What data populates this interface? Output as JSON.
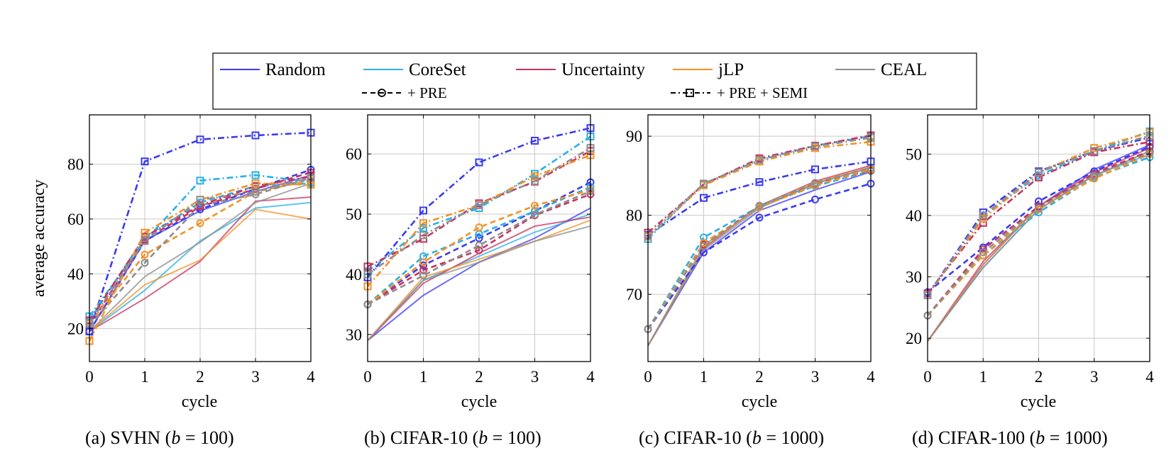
{
  "colors": {
    "Random": "#3b3bf0",
    "CoreSet": "#2ab0e8",
    "Uncertainty": "#c8325f",
    "jLP": "#f39225",
    "CEAL": "#8e8e8e",
    "grid": "#c8c8c8",
    "axis": "#000000"
  },
  "legend": {
    "methods": [
      "Random",
      "CoreSet",
      "Uncertainty",
      "jLP",
      "CEAL"
    ],
    "variants": [
      "+ PRE",
      "+ PRE + SEMI"
    ]
  },
  "chart_data": [
    {
      "type": "line",
      "title": "(a) SVHN (b = 100)",
      "caption_prefix": "(a) SVHN (",
      "caption_var": "b",
      "caption_suffix": " = 100)",
      "xlabel": "cycle",
      "ylabel": "average accuracy",
      "x": [
        0,
        1,
        2,
        3,
        4
      ],
      "xlim": [
        0,
        4
      ],
      "ylim": [
        8,
        98
      ],
      "yticks": [
        20,
        40,
        60,
        80
      ],
      "series": [
        {
          "name": "Random",
          "variant": "base",
          "values": [
            19,
            52,
            63,
            70,
            76
          ]
        },
        {
          "name": "CoreSet",
          "variant": "base",
          "values": [
            19,
            34,
            52,
            64,
            66
          ]
        },
        {
          "name": "Uncertainty",
          "variant": "base",
          "values": [
            19,
            31,
            44.5,
            66.5,
            68
          ]
        },
        {
          "name": "jLP",
          "variant": "base",
          "values": [
            19,
            36,
            45,
            63.5,
            60
          ]
        },
        {
          "name": "CEAL",
          "variant": "base",
          "values": [
            19,
            39,
            51.5,
            66,
            73
          ]
        },
        {
          "name": "Random",
          "variant": "+ PRE",
          "values": [
            19,
            52,
            63.5,
            71,
            78
          ]
        },
        {
          "name": "CoreSet",
          "variant": "+ PRE",
          "values": [
            23,
            53.5,
            66,
            72,
            73
          ]
        },
        {
          "name": "Uncertainty",
          "variant": "+ PRE",
          "values": [
            21,
            52.5,
            64.5,
            71,
            77
          ]
        },
        {
          "name": "jLP",
          "variant": "+ PRE",
          "values": [
            22,
            47,
            58.5,
            70,
            74
          ]
        },
        {
          "name": "CEAL",
          "variant": "+ PRE",
          "values": [
            21,
            44,
            65,
            69,
            75
          ]
        },
        {
          "name": "Random",
          "variant": "+ PRE + SEMI",
          "values": [
            19,
            81,
            89,
            90.5,
            91.5
          ]
        },
        {
          "name": "CoreSet",
          "variant": "+ PRE + SEMI",
          "values": [
            24.5,
            52,
            74,
            76,
            73.5
          ]
        },
        {
          "name": "Uncertainty",
          "variant": "+ PRE + SEMI",
          "values": [
            23,
            53.5,
            65,
            72,
            75.5
          ]
        },
        {
          "name": "jLP",
          "variant": "+ PRE + SEMI",
          "values": [
            15.5,
            55,
            67,
            73,
            72.5
          ]
        },
        {
          "name": "CEAL",
          "variant": "+ PRE + SEMI",
          "values": [
            22,
            52,
            67,
            70,
            75
          ]
        }
      ]
    },
    {
      "type": "line",
      "title": "(b) CIFAR-10 (b = 100)",
      "caption_prefix": "(b) CIFAR-10 (",
      "caption_var": "b",
      "caption_suffix": " = 100)",
      "xlabel": "cycle",
      "ylabel": "",
      "x": [
        0,
        1,
        2,
        3,
        4
      ],
      "xlim": [
        0,
        4
      ],
      "ylim": [
        25.5,
        66.5
      ],
      "yticks": [
        30,
        40,
        50,
        60
      ],
      "series": [
        {
          "name": "Random",
          "variant": "base",
          "values": [
            29,
            36.5,
            42,
            46,
            51
          ]
        },
        {
          "name": "CoreSet",
          "variant": "base",
          "values": [
            29,
            39,
            43,
            47,
            50
          ]
        },
        {
          "name": "Uncertainty",
          "variant": "base",
          "values": [
            29,
            38.5,
            43.5,
            48,
            49.5
          ]
        },
        {
          "name": "jLP",
          "variant": "base",
          "values": [
            29,
            39.5,
            42.5,
            45.5,
            49
          ]
        },
        {
          "name": "CEAL",
          "variant": "base",
          "values": [
            29,
            39,
            42,
            45.5,
            48
          ]
        },
        {
          "name": "Random",
          "variant": "+ PRE",
          "values": [
            35,
            41.5,
            46,
            50.5,
            55.3
          ]
        },
        {
          "name": "CoreSet",
          "variant": "+ PRE",
          "values": [
            35,
            43,
            46.7,
            50.5,
            54.5
          ]
        },
        {
          "name": "Uncertainty",
          "variant": "+ PRE",
          "values": [
            35,
            40.7,
            44,
            49.8,
            53.3
          ]
        },
        {
          "name": "jLP",
          "variant": "+ PRE",
          "values": [
            35,
            42,
            47.8,
            51.4,
            54
          ]
        },
        {
          "name": "CEAL",
          "variant": "+ PRE",
          "values": [
            35,
            39.8,
            44.8,
            49.9,
            53.8
          ]
        },
        {
          "name": "Random",
          "variant": "+ PRE + SEMI",
          "values": [
            39.5,
            50.6,
            58.6,
            62.2,
            64.3
          ]
        },
        {
          "name": "CoreSet",
          "variant": "+ PRE + SEMI",
          "values": [
            40.5,
            47.7,
            51,
            56.7,
            62.9
          ]
        },
        {
          "name": "Uncertainty",
          "variant": "+ PRE + SEMI",
          "values": [
            41.3,
            45.9,
            51.8,
            55.4,
            60.5
          ]
        },
        {
          "name": "jLP",
          "variant": "+ PRE + SEMI",
          "values": [
            38,
            48.5,
            51.5,
            56.3,
            59.8
          ]
        },
        {
          "name": "CEAL",
          "variant": "+ PRE + SEMI",
          "values": [
            40,
            46.5,
            51.5,
            55.5,
            61
          ]
        }
      ]
    },
    {
      "type": "line",
      "title": "(c) CIFAR-10 (b = 1000)",
      "caption_prefix": "(c) CIFAR-10 (",
      "caption_var": "b",
      "caption_suffix": " = 1000)",
      "xlabel": "",
      "ylabel": "",
      "x": [
        0,
        1,
        2,
        3,
        4
      ],
      "xlim": [
        0,
        4
      ],
      "ylim": [
        61.5,
        92.7
      ],
      "yticks": [
        70,
        80,
        90
      ],
      "series": [
        {
          "name": "Random",
          "variant": "base",
          "values": [
            63.5,
            75.3,
            80.6,
            83.2,
            85.5
          ]
        },
        {
          "name": "CoreSet",
          "variant": "base",
          "values": [
            63.5,
            76.2,
            81,
            84,
            86
          ]
        },
        {
          "name": "Uncertainty",
          "variant": "base",
          "values": [
            63.5,
            75.8,
            81.2,
            84.3,
            86.3
          ]
        },
        {
          "name": "jLP",
          "variant": "base",
          "values": [
            63.5,
            76,
            81.1,
            84.2,
            86.1
          ]
        },
        {
          "name": "CEAL",
          "variant": "base",
          "values": [
            63.5,
            75.6,
            80.9,
            84,
            86
          ]
        },
        {
          "name": "Random",
          "variant": "+ PRE",
          "values": [
            65.6,
            75.3,
            79.7,
            82,
            84
          ]
        },
        {
          "name": "CoreSet",
          "variant": "+ PRE",
          "values": [
            65.6,
            77.2,
            81.1,
            83.7,
            85.6
          ]
        },
        {
          "name": "Uncertainty",
          "variant": "+ PRE",
          "values": [
            65.6,
            76.3,
            81.2,
            83.9,
            85.7
          ]
        },
        {
          "name": "jLP",
          "variant": "+ PRE",
          "values": [
            65.6,
            76.5,
            81,
            83.8,
            85.8
          ]
        },
        {
          "name": "CEAL",
          "variant": "+ PRE",
          "values": [
            65.6,
            76.1,
            81.2,
            84.1,
            86
          ]
        },
        {
          "name": "Random",
          "variant": "+ PRE + SEMI",
          "values": [
            77.5,
            82.2,
            84.2,
            85.8,
            86.8
          ]
        },
        {
          "name": "CoreSet",
          "variant": "+ PRE + SEMI",
          "values": [
            77,
            84,
            87,
            88.8,
            90
          ]
        },
        {
          "name": "Uncertainty",
          "variant": "+ PRE + SEMI",
          "values": [
            77.8,
            83.9,
            87.2,
            88.8,
            90.1
          ]
        },
        {
          "name": "jLP",
          "variant": "+ PRE + SEMI",
          "values": [
            77.3,
            83.8,
            86.8,
            88.5,
            89.3
          ]
        },
        {
          "name": "CEAL",
          "variant": "+ PRE + SEMI",
          "values": [
            77.4,
            84,
            87,
            88.7,
            89.8
          ]
        }
      ]
    },
    {
      "type": "line",
      "title": "(d) CIFAR-100 (b = 1000)",
      "caption_prefix": "(d) CIFAR-100 (",
      "caption_var": "b",
      "caption_suffix": " = 1000)",
      "xlabel": "cycle",
      "ylabel": "",
      "x": [
        0,
        1,
        2,
        3,
        4
      ],
      "xlim": [
        0,
        4
      ],
      "ylim": [
        16.2,
        56.4
      ],
      "yticks": [
        20,
        30,
        40,
        50
      ],
      "series": [
        {
          "name": "Random",
          "variant": "base",
          "values": [
            19.5,
            32,
            41.5,
            47.5,
            51.5
          ]
        },
        {
          "name": "CoreSet",
          "variant": "base",
          "values": [
            19.5,
            31.5,
            41,
            46.5,
            50
          ]
        },
        {
          "name": "Uncertainty",
          "variant": "base",
          "values": [
            19.5,
            32.5,
            41.5,
            47,
            51
          ]
        },
        {
          "name": "jLP",
          "variant": "base",
          "values": [
            19.5,
            32,
            41.5,
            46.5,
            50.5
          ]
        },
        {
          "name": "CEAL",
          "variant": "base",
          "values": [
            19.5,
            31.5,
            41,
            46.5,
            50.5
          ]
        },
        {
          "name": "Random",
          "variant": "+ PRE",
          "values": [
            27.5,
            34.8,
            42.3,
            47.2,
            51.2
          ]
        },
        {
          "name": "CoreSet",
          "variant": "+ PRE",
          "values": [
            23.7,
            33.5,
            40.5,
            46.2,
            49.5
          ]
        },
        {
          "name": "Uncertainty",
          "variant": "+ PRE",
          "values": [
            23.7,
            34.5,
            41.5,
            46.8,
            50.5
          ]
        },
        {
          "name": "jLP",
          "variant": "+ PRE",
          "values": [
            23.7,
            33.5,
            41,
            46,
            50
          ]
        },
        {
          "name": "CEAL",
          "variant": "+ PRE",
          "values": [
            23.7,
            34,
            41.2,
            46.5,
            50.2
          ]
        },
        {
          "name": "Random",
          "variant": "+ PRE + SEMI",
          "values": [
            27,
            40.5,
            47.2,
            50.5,
            52.7
          ]
        },
        {
          "name": "CoreSet",
          "variant": "+ PRE + SEMI",
          "values": [
            27,
            40,
            46.5,
            50.5,
            53.7
          ]
        },
        {
          "name": "Uncertainty",
          "variant": "+ PRE + SEMI",
          "values": [
            27.3,
            38.8,
            46.2,
            50.3,
            52
          ]
        },
        {
          "name": "jLP",
          "variant": "+ PRE + SEMI",
          "values": [
            27,
            39.5,
            47,
            51,
            53.5
          ]
        },
        {
          "name": "CEAL",
          "variant": "+ PRE + SEMI",
          "values": [
            27,
            40,
            47,
            50.5,
            53
          ]
        }
      ]
    }
  ]
}
